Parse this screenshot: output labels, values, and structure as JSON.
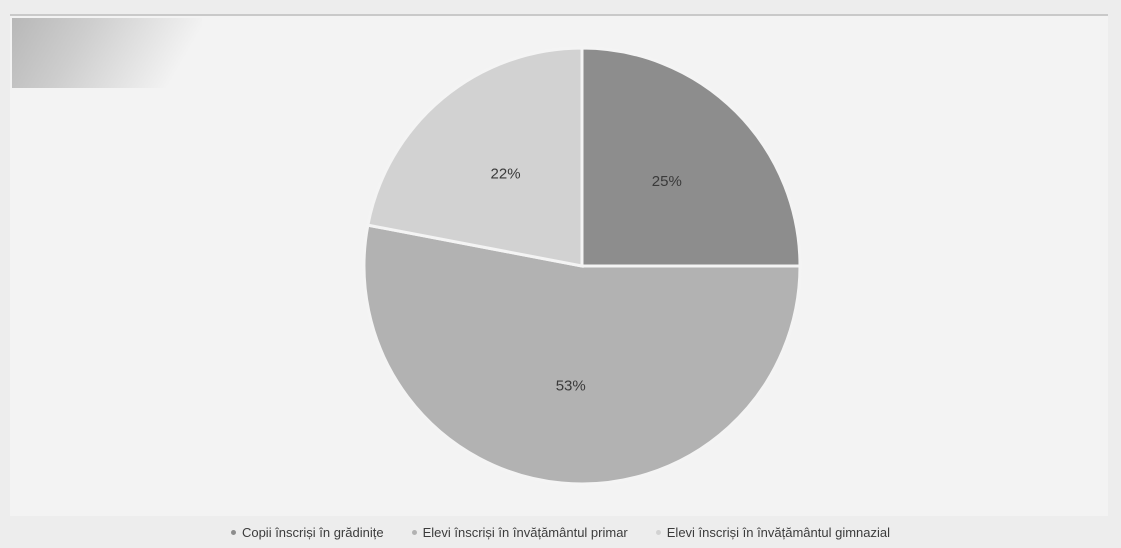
{
  "chart_data": {
    "type": "pie",
    "title": "",
    "slices": [
      {
        "name": "Copii înscriși în grădinițe",
        "value": 25,
        "label": "25%",
        "color": "#8d8d8d"
      },
      {
        "name": "Elevi înscriși în învățământul primar",
        "value": 53,
        "label": "53%",
        "color": "#b2b2b2"
      },
      {
        "name": "Elevi înscriși în învățământul gimnazial",
        "value": 22,
        "label": "22%",
        "color": "#d2d2d2"
      }
    ],
    "legend_placement": "bottom",
    "start_angle": "12 o'clock, clockwise"
  }
}
